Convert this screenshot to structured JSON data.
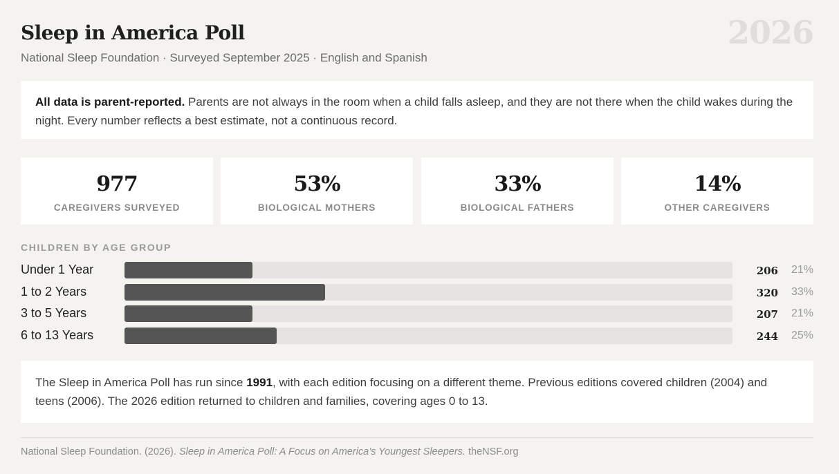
{
  "header": {
    "title": "Sleep in America Poll",
    "subtitle": "National Sleep Foundation · Surveyed September 2025 · English and Spanish",
    "year": "2026"
  },
  "note": {
    "lead": "All data is parent-reported.",
    "text": " Parents are not always in the room when a child falls asleep, and they are not there when the child wakes during the night. Every number reflects a best estimate, not a continuous record."
  },
  "stats": [
    {
      "value": "977",
      "label": "CAREGIVERS SURVEYED"
    },
    {
      "value": "53%",
      "label": "BIOLOGICAL MOTHERS"
    },
    {
      "value": "33%",
      "label": "BIOLOGICAL FATHERS"
    },
    {
      "value": "14%",
      "label": "OTHER CAREGIVERS"
    }
  ],
  "chart_data": {
    "type": "bar",
    "orientation": "horizontal",
    "title": "CHILDREN BY AGE GROUP",
    "categories": [
      "Under 1 Year",
      "1 to 2 Years",
      "3 to 5 Years",
      "6 to 13 Years"
    ],
    "values": [
      206,
      320,
      207,
      244
    ],
    "percent_labels": [
      "21%",
      "33%",
      "21%",
      "25%"
    ],
    "percents": [
      21,
      33,
      21,
      25
    ],
    "xlim": [
      0,
      100
    ],
    "xlabel": "",
    "ylabel": "",
    "colors": {
      "fill": "#555555",
      "track": "#e6e4e0"
    }
  },
  "footnote": {
    "before": "The Sleep in America Poll has run since ",
    "bold": "1991",
    "after": ", with each edition focusing on a different theme. Previous editions covered children (2004) and teens (2006). The 2026 edition returned to children and families, covering ages 0 to 13."
  },
  "citation": {
    "author": "National Sleep Foundation. (2026). ",
    "work": "Sleep in America Poll: A Focus on America’s Youngest Sleepers.",
    "site": " theNSF.org"
  },
  "colors": {
    "background": "#f4f3f0",
    "card": "#ffffff",
    "bar": "#555555",
    "track": "#e6e4e0",
    "muted": "#9a9a9a"
  }
}
